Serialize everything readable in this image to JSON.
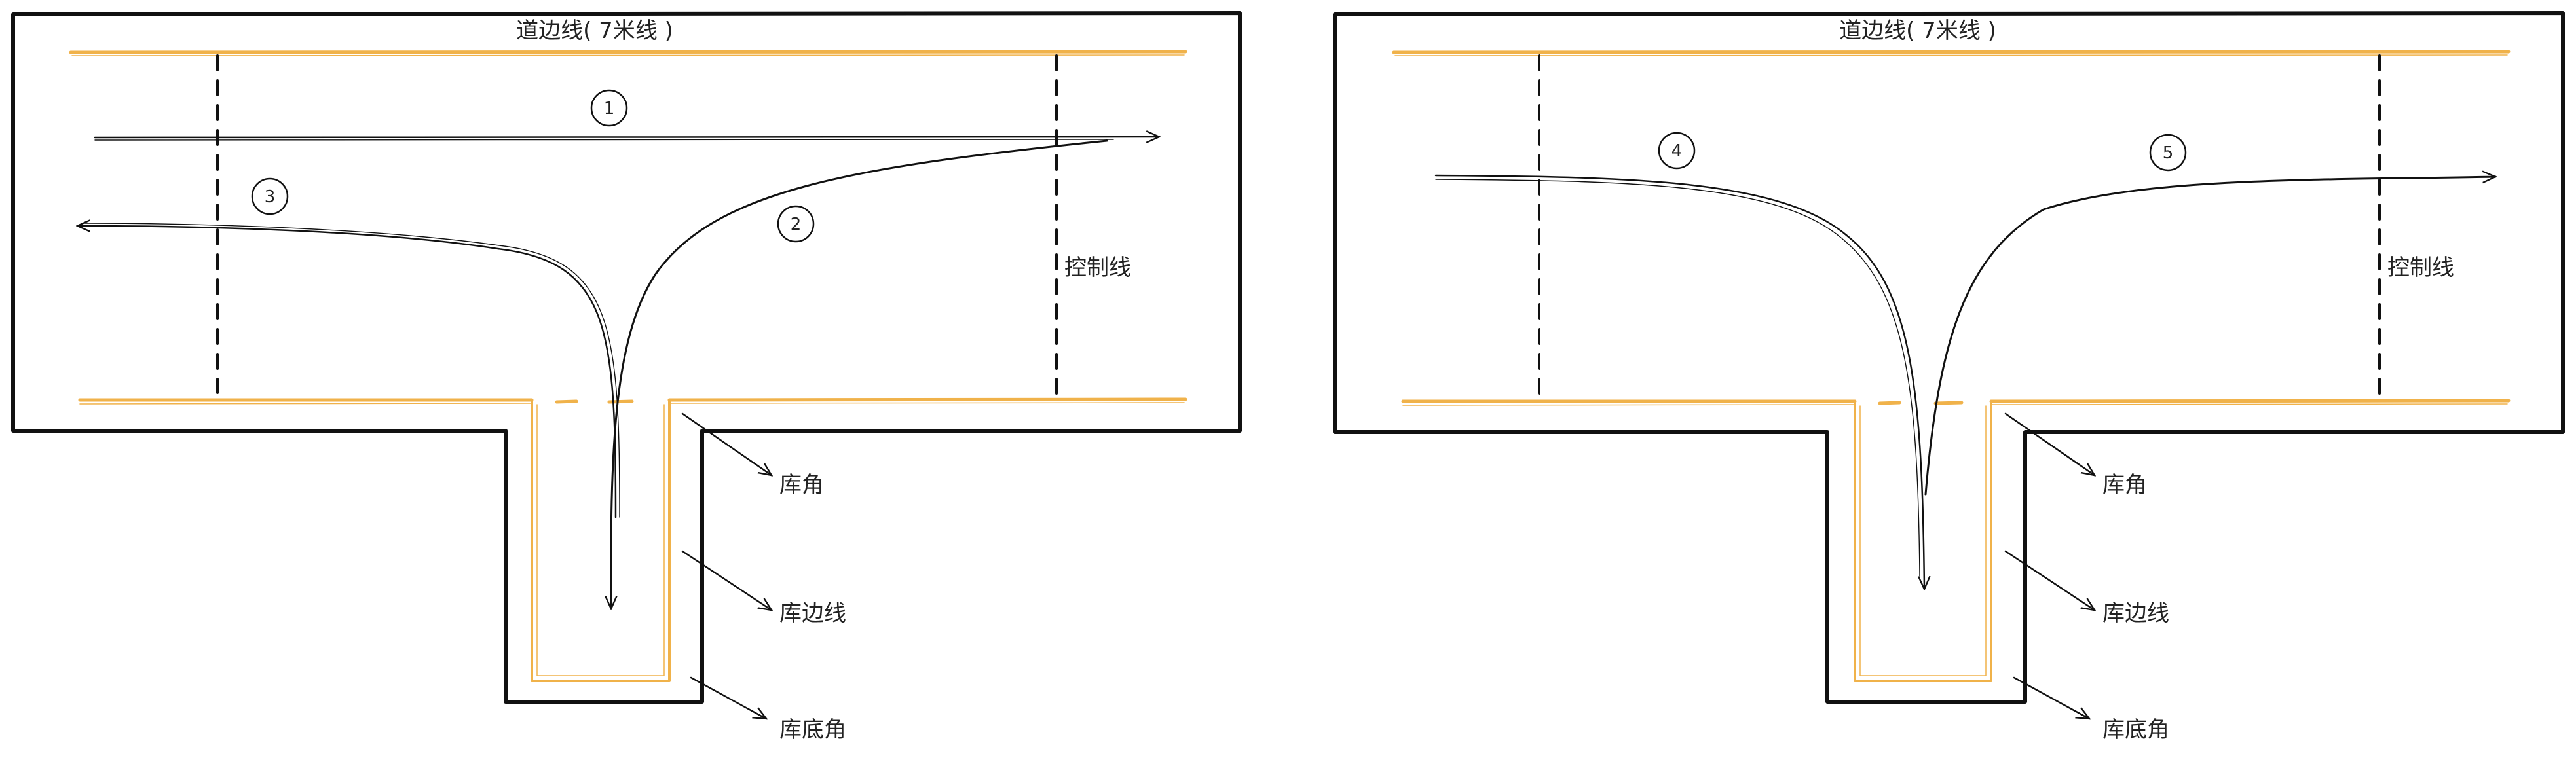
{
  "colors": {
    "ink": "#111111",
    "marking": "#f0b24a",
    "background": "#ffffff"
  },
  "left_panel": {
    "road_edge_label": "道边线( 7米线 )",
    "control_line_label": "控制线",
    "garage_corner_label": "库角",
    "garage_edge_label": "库边线",
    "garage_bottom_corner_label": "库底角",
    "route_markers": [
      "1",
      "2",
      "3"
    ]
  },
  "right_panel": {
    "road_edge_label": "道边线( 7米线 )",
    "control_line_label": "控制线",
    "garage_corner_label": "库角",
    "garage_edge_label": "库边线",
    "garage_bottom_corner_label": "库底角",
    "route_markers": [
      "4",
      "5"
    ]
  }
}
